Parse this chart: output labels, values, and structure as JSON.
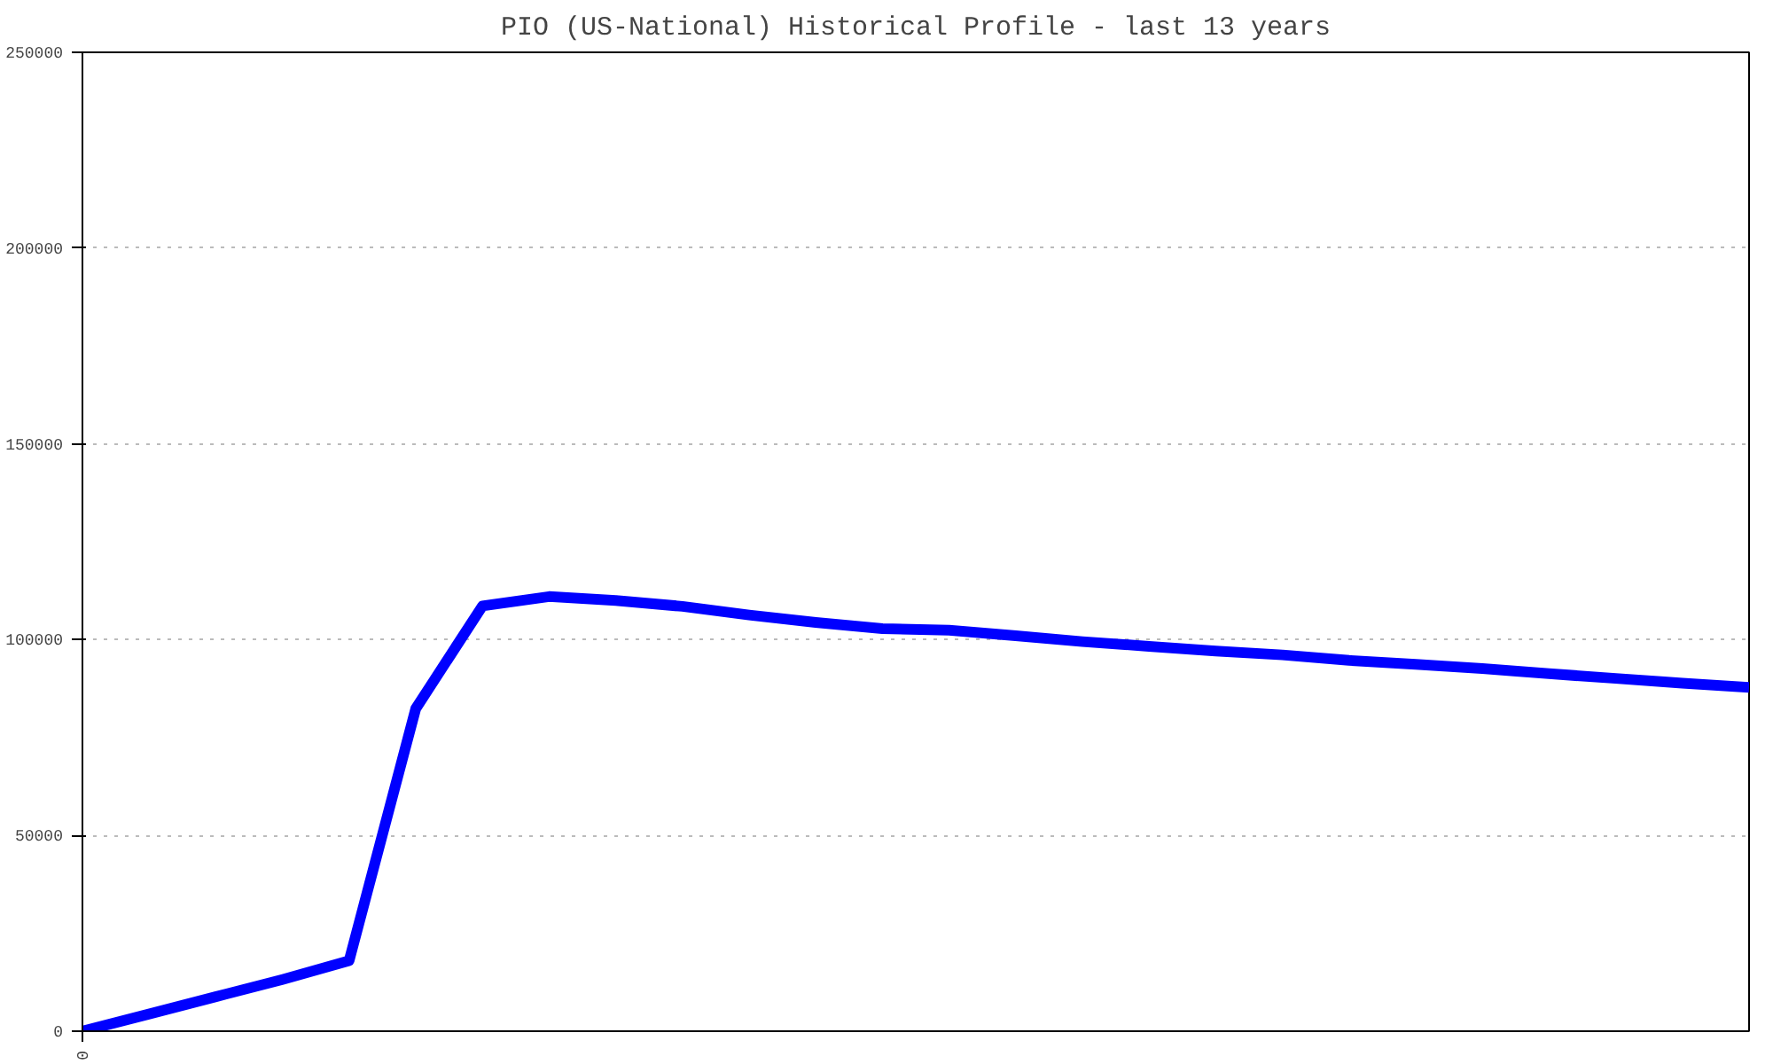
{
  "chart_data": {
    "type": "line",
    "title": "PIO (US-National) Historical Profile - last 13 years",
    "categories": [
      "0",
      null,
      null,
      null,
      null,
      null,
      null,
      null,
      null,
      null,
      null,
      null,
      null,
      null,
      null,
      null,
      null,
      null,
      null,
      null,
      null,
      null,
      null,
      null,
      null,
      null
    ],
    "series": [
      {
        "color": "#0000ff",
        "values": [
          0,
          4400,
          8800,
          13200,
          18000,
          82400,
          108600,
          111000,
          110000,
          108500,
          106300,
          104400,
          102800,
          102400,
          101000,
          99500,
          98300,
          97100,
          96100,
          94700,
          93700,
          92600,
          91300,
          90100,
          88900,
          87800
        ]
      }
    ],
    "ylim": [
      0,
      250000
    ],
    "yticks": [
      0,
      50000,
      100000,
      150000,
      200000,
      250000
    ],
    "grid": "y",
    "marker": "none",
    "line_style": "solid"
  }
}
